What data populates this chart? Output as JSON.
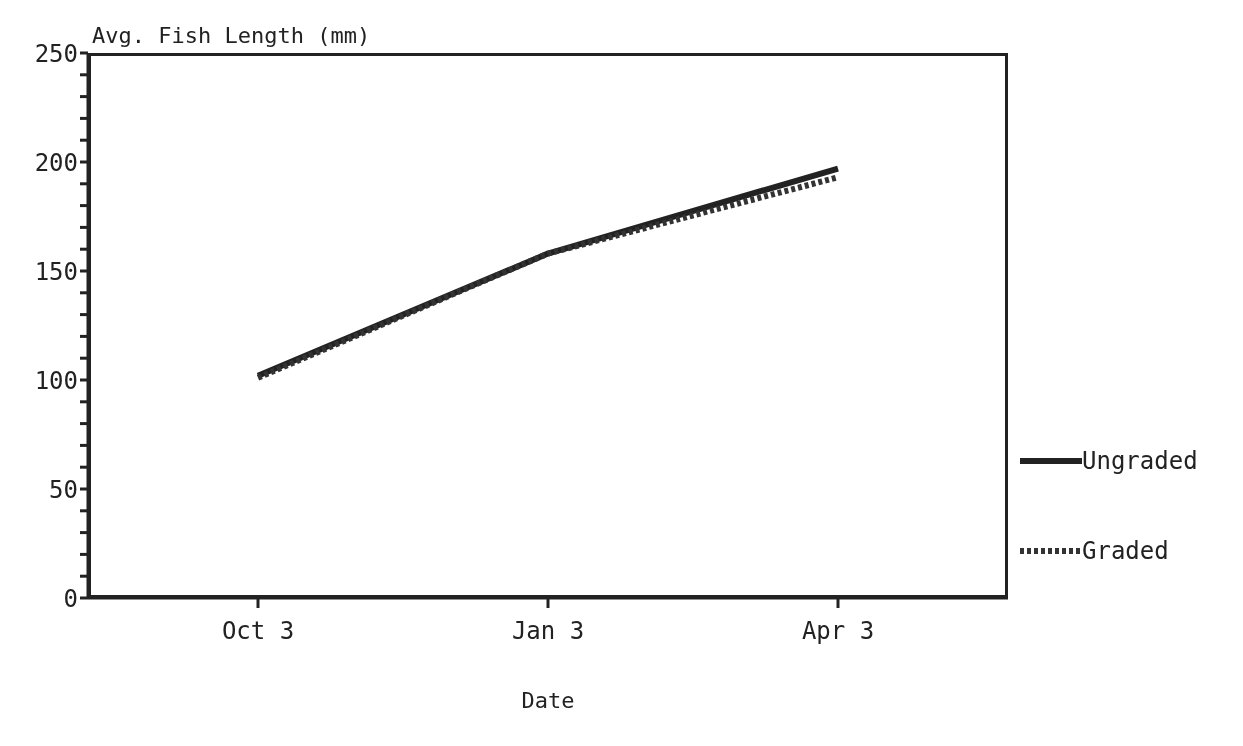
{
  "chart_data": {
    "type": "line",
    "ylabel": "Avg. Fish Length (mm)",
    "xlabel": "Date",
    "categories": [
      "Oct 3",
      "Jan 3",
      "Apr 3"
    ],
    "series": [
      {
        "name": "Ungraded",
        "color": "#222222",
        "values": [
          102,
          158,
          197
        ],
        "line_style": "solid"
      },
      {
        "name": "Graded",
        "color": "#333333",
        "values": [
          101,
          158,
          193
        ],
        "line_style": "dotted"
      }
    ],
    "ylim": [
      0,
      250
    ],
    "yticks": [
      0,
      {
        "value": 10,
        "label": null
      },
      {
        "value": 20,
        "label": null
      },
      {
        "value": 30,
        "label": null
      },
      {
        "value": 40,
        "label": null
      },
      50,
      {
        "value": 60,
        "label": null
      },
      {
        "value": 70,
        "label": null
      },
      {
        "value": 80,
        "label": null
      },
      {
        "value": 90,
        "label": null
      },
      100,
      {
        "value": 110,
        "label": null
      },
      {
        "value": 120,
        "label": null
      },
      {
        "value": 130,
        "label": null
      },
      {
        "value": 140,
        "label": null
      },
      150,
      {
        "value": 160,
        "label": null
      },
      {
        "value": 170,
        "label": null
      },
      {
        "value": 180,
        "label": null
      },
      {
        "value": 190,
        "label": null
      },
      200,
      {
        "value": 210,
        "label": null
      },
      {
        "value": 220,
        "label": null
      },
      {
        "value": 230,
        "label": null
      },
      {
        "value": 240,
        "label": null
      },
      250
    ],
    "grid": false,
    "legend": "right",
    "marker": "none"
  }
}
